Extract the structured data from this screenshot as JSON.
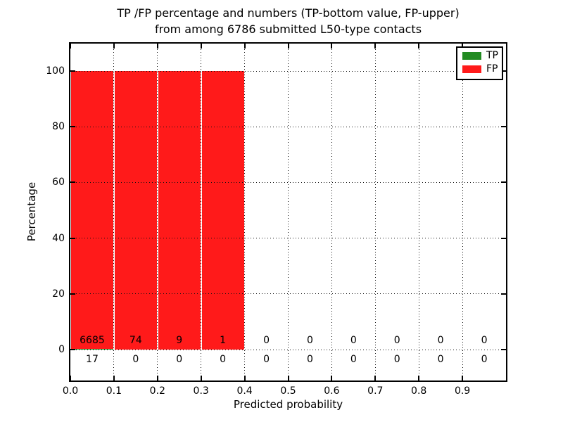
{
  "chart_data": {
    "type": "bar",
    "stacked": true,
    "title_line1": "TP /FP percentage and numbers (TP-bottom value, FP-upper)",
    "title_line2": "from among 6786 submitted L50-type contacts",
    "xlabel": "Predicted probability",
    "ylabel": "Percentage",
    "total_contacts": 6786,
    "contact_type": "L50",
    "x_tick_labels": [
      "0.0",
      "0.1",
      "0.2",
      "0.3",
      "0.4",
      "0.5",
      "0.6",
      "0.7",
      "0.8",
      "0.9"
    ],
    "x_tick_values": [
      0,
      0.1,
      0.2,
      0.3,
      0.4,
      0.5,
      0.6,
      0.7,
      0.8,
      0.9
    ],
    "y_tick_labels": [
      "0",
      "20",
      "40",
      "60",
      "80",
      "100"
    ],
    "y_tick_values": [
      0,
      20,
      40,
      60,
      80,
      100
    ],
    "xlim": [
      0.0,
      1.0
    ],
    "ylim": [
      -11,
      110
    ],
    "bin_width": 0.1,
    "grid": "dotted, on top of bars",
    "legend_position": "upper right",
    "series": [
      {
        "name": "TP",
        "color": "#228b22",
        "counts": [
          17,
          0,
          0,
          0,
          0,
          0,
          0,
          0,
          0,
          0
        ],
        "percentages": [
          0.25,
          0,
          0,
          0,
          0,
          0,
          0,
          0,
          0,
          0
        ]
      },
      {
        "name": "FP",
        "color": "#ff1a1a",
        "counts": [
          6685,
          74,
          9,
          1,
          0,
          0,
          0,
          0,
          0,
          0
        ],
        "percentages": [
          99.75,
          100,
          100,
          100,
          0,
          0,
          0,
          0,
          0,
          0
        ]
      }
    ],
    "colors": {
      "tp_green": "#228b22",
      "fp_red": "#ff1a1a",
      "grid": "#111111",
      "spine": "#000000",
      "background": "#ffffff"
    }
  }
}
